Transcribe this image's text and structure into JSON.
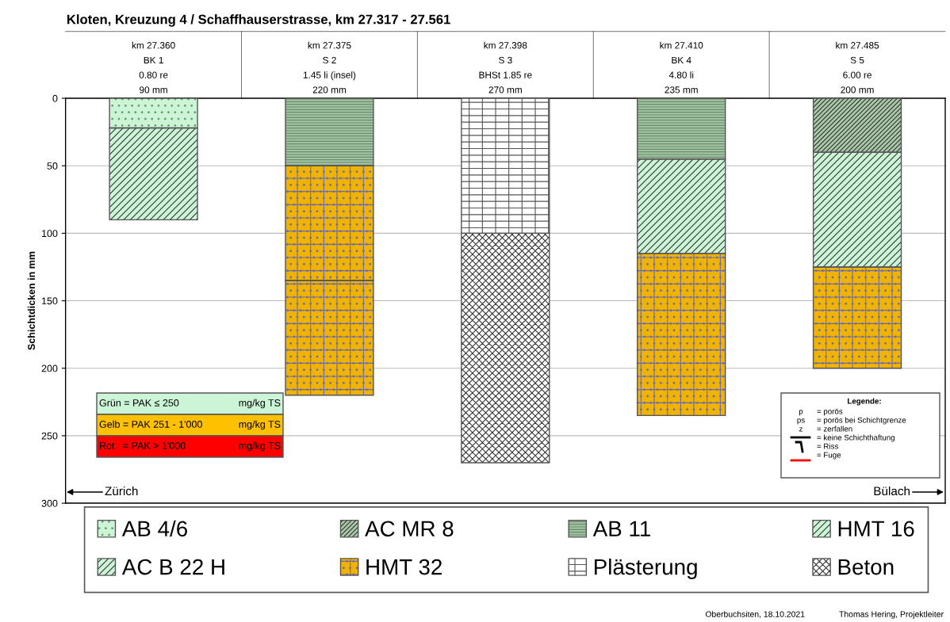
{
  "chart_data": {
    "type": "bar",
    "stacked": true,
    "title": "Kloten, Kreuzung 4 / Schaffhauserstrasse, km 27.317 - 27.561",
    "ylabel": "Schichtdicken in mm",
    "categories": [
      "km 27.360\nBK 1\n0.80 re\n90 mm",
      "km 27.375\nS 2\n1.45 li (insel)\n220 mm",
      "km 27.398\nS 3\nBHSt 1.85 re\n270 mm",
      "km 27.410\nBK 4\n4.80 li\n235 mm",
      "km 27.485\nS 5\n6.00 re\n200 mm"
    ],
    "series": [
      {
        "name": "AB 4/6",
        "color": "#ccf5d8",
        "values": [
          22,
          null,
          null,
          null,
          null
        ]
      },
      {
        "name": "AC MR 8",
        "color": "#a9c9a9",
        "values": [
          null,
          null,
          null,
          null,
          40
        ]
      },
      {
        "name": "AB 11",
        "color": "#a3c4a3",
        "values": [
          null,
          50,
          null,
          45,
          null
        ]
      },
      {
        "name": "HMT 16",
        "color": "#ccf5d8",
        "values": [
          68,
          null,
          null,
          70,
          null
        ]
      },
      {
        "name": "AC B 22 H",
        "color": "#ccf5d8",
        "values": [
          null,
          null,
          null,
          null,
          85
        ]
      },
      {
        "name": "HMT 32",
        "color": "#f0b400",
        "values": [
          null,
          85,
          null,
          120,
          75
        ]
      },
      {
        "color": "#f0b400",
        "values": [
          null,
          85,
          null,
          null,
          null
        ]
      },
      {
        "name": "Plästerung",
        "color": "#ffffff",
        "values": [
          null,
          null,
          100,
          null,
          null
        ]
      },
      {
        "name": "Beton",
        "color": "#ffffff",
        "values": [
          null,
          null,
          170,
          null,
          null
        ]
      }
    ],
    "ylim": [
      300,
      0
    ],
    "yticks": [
      0,
      50,
      100,
      150,
      200,
      250,
      300
    ],
    "grid": "y",
    "legend": "bottom",
    "annotations": [
      "Grün = PAK ≤ 250",
      "mg/kg TS",
      "Gelb = PAK 251 - 1'000",
      "mg/kg TS",
      "Rot   = PAK > 1'000",
      "mg/kg TS",
      "Legende:",
      "p",
      "= porös",
      "ps",
      "= porös bei Schichtgrenze",
      "z",
      "= zerfallen",
      "= keine Schichthaftung",
      "= Riss",
      "= Fuge",
      "Zürich",
      "Bülach",
      "Oberbuchsiten, 18.10.2021",
      "Thomas Hering, Projektleiter"
    ]
  }
}
